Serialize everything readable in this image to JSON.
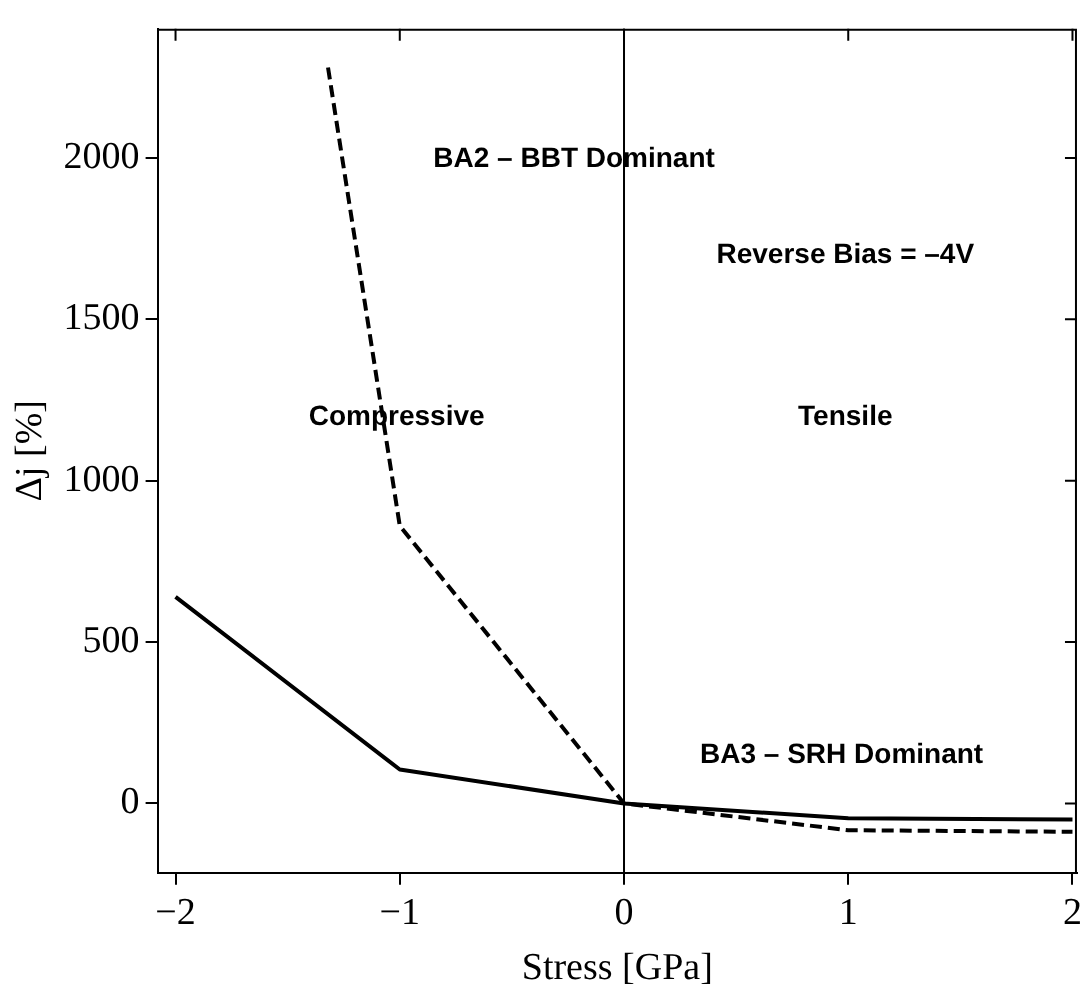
{
  "chart_data": {
    "type": "line",
    "xlabel": "Stress [GPa]",
    "ylabel": "Δj [%]",
    "xlim": [
      -2.08,
      2.02
    ],
    "xticks": [
      -2,
      -1,
      0,
      1,
      2
    ],
    "ylim": [
      -215,
      2400
    ],
    "yticks": [
      0,
      500,
      1000,
      1500,
      2000
    ],
    "grid": false,
    "legend": false,
    "marker": "none",
    "series": [
      {
        "color": "#000000",
        "line_style": "dashed",
        "x": [
          -1.32,
          -1,
          0,
          1,
          2
        ],
        "values": [
          2280,
          860,
          0,
          -83,
          -88
        ]
      },
      {
        "color": "#000000",
        "line_style": "solid",
        "x": [
          -2,
          -1,
          0,
          1,
          2
        ],
        "values": [
          640,
          105,
          0,
          -46,
          -50
        ]
      }
    ],
    "ref_lines": [
      {
        "axis": "x",
        "value": 0,
        "color": "#000000"
      }
    ],
    "annotations": [
      "BA2 – BBT Dominant",
      "Reverse Bias = –4V",
      "Compressive",
      "Tensile",
      "BA3 – SRH Dominant"
    ]
  }
}
